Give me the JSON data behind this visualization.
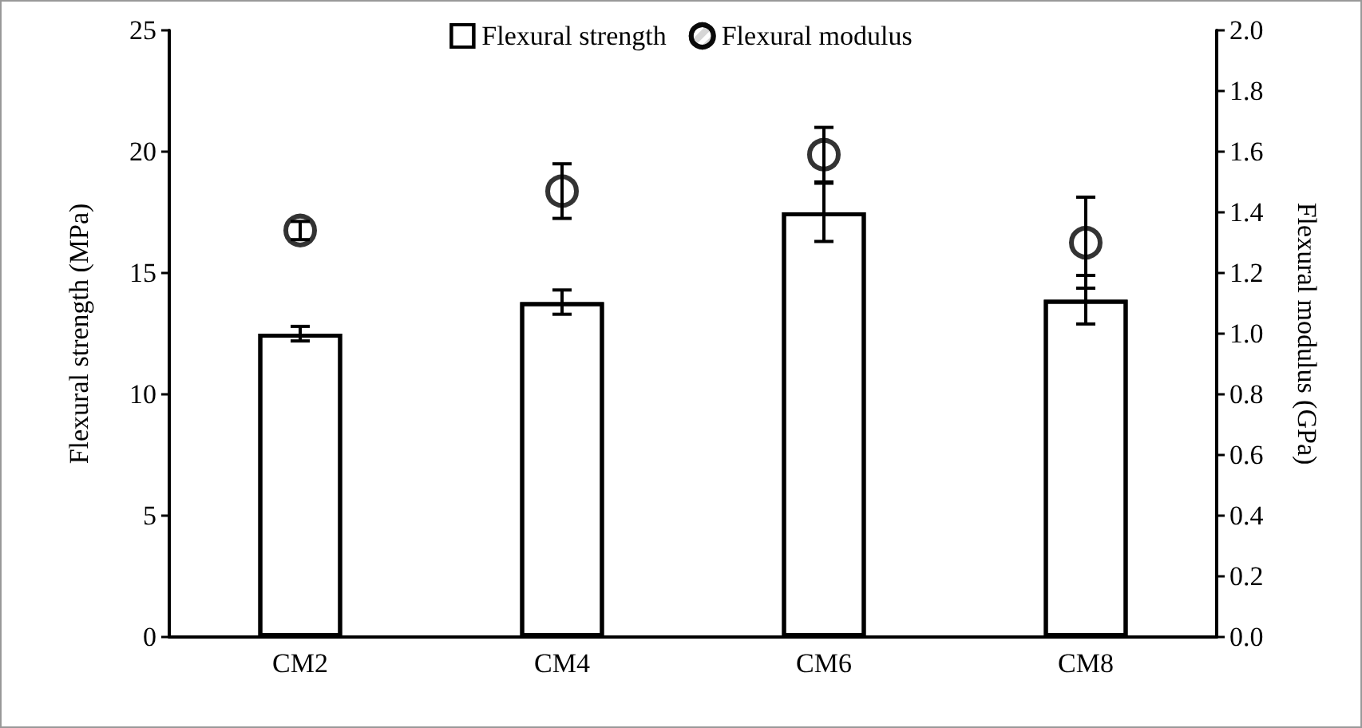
{
  "chart_data": {
    "type": "bar",
    "ylabel": "Flexural strength (MPa)",
    "y2label": "Flexural modulus (GPa)",
    "categories": [
      "CM2",
      "CM4",
      "CM6",
      "CM8"
    ],
    "series": [
      {
        "name": "Flexural strength",
        "color": "#ffffff",
        "values": [
          12.5,
          13.8,
          17.5,
          13.9
        ],
        "errors": [
          0.3,
          0.5,
          1.2,
          1.0
        ]
      },
      {
        "name": "Flexural modulus",
        "type": "scatter",
        "axis": "y2",
        "marker": "circle",
        "color": "#000000",
        "x": [
          "CM2",
          "CM4",
          "CM6",
          "CM8"
        ],
        "values": [
          1.34,
          1.47,
          1.59,
          1.3
        ],
        "errors": [
          0.03,
          0.09,
          0.09,
          0.15
        ]
      }
    ],
    "ylim": [
      0,
      25
    ],
    "yticks": [
      0,
      5,
      10,
      15,
      20,
      25
    ],
    "y2lim": [
      0,
      2.0
    ],
    "y2ticks": [
      {
        "value": 0,
        "label": "0.0"
      },
      {
        "value": 0.2,
        "label": "0.2"
      },
      {
        "value": 0.4,
        "label": "0.4"
      },
      {
        "value": 0.6,
        "label": "0.6"
      },
      {
        "value": 0.8,
        "label": "0.8"
      },
      {
        "value": 1.0,
        "label": "1.0"
      },
      {
        "value": 1.2,
        "label": "1.2"
      },
      {
        "value": 1.4,
        "label": "1.4"
      },
      {
        "value": 1.6,
        "label": "1.6"
      },
      {
        "value": 1.8,
        "label": "1.8"
      },
      {
        "value": 2.0,
        "label": "2.0"
      }
    ],
    "legend": "top",
    "grid": false
  }
}
